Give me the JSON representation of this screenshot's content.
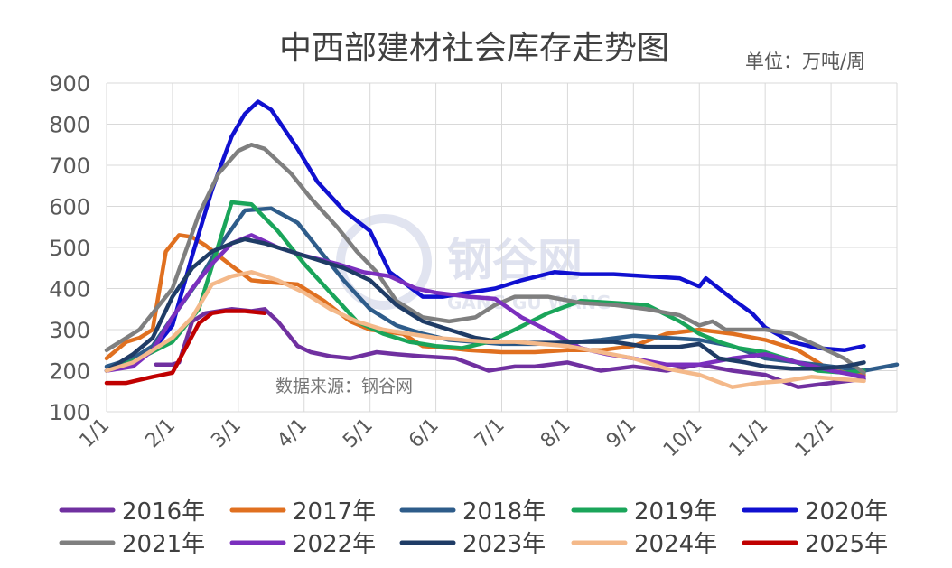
{
  "watermark": {
    "text": "钢谷网",
    "sub": "GANG GU WANG"
  },
  "chart_data": {
    "type": "line",
    "title": "中西部建材社会库存走势图",
    "unit_label": "单位：万吨/周",
    "source_note": "数据来源：钢谷网",
    "xlabel": "",
    "ylabel": "",
    "ylim": [
      100,
      900
    ],
    "yticks": [
      100,
      200,
      300,
      400,
      500,
      600,
      700,
      800,
      900
    ],
    "xlim": [
      0,
      12
    ],
    "xticks": [
      {
        "label": "1/1",
        "x": 0
      },
      {
        "label": "2/1",
        "x": 1
      },
      {
        "label": "3/1",
        "x": 2
      },
      {
        "label": "4/1",
        "x": 3
      },
      {
        "label": "5/1",
        "x": 4
      },
      {
        "label": "6/1",
        "x": 5
      },
      {
        "label": "7/1",
        "x": 6
      },
      {
        "label": "8/1",
        "x": 7
      },
      {
        "label": "9/1",
        "x": 8
      },
      {
        "label": "10/1",
        "x": 9
      },
      {
        "label": "11/1",
        "x": 10
      },
      {
        "label": "12/1",
        "x": 11
      }
    ],
    "grid": true,
    "legend_position": "bottom",
    "series": [
      {
        "name": "2016年",
        "color": "#7030a0",
        "x": [
          0.75,
          1.0,
          1.1,
          1.3,
          1.5,
          1.9,
          2.2,
          2.4,
          2.6,
          2.9,
          3.1,
          3.4,
          3.7,
          4.1,
          4.4,
          4.8,
          5.3,
          5.8,
          6.2,
          6.5,
          7.0,
          7.5,
          8.0,
          8.5,
          9.0,
          9.5,
          10.0,
          10.5,
          11.0,
          11.5
        ],
        "y": [
          215,
          215,
          220,
          320,
          340,
          350,
          345,
          350,
          320,
          260,
          245,
          235,
          230,
          245,
          240,
          235,
          230,
          200,
          210,
          210,
          220,
          200,
          210,
          200,
          215,
          200,
          190,
          160,
          170,
          180
        ]
      },
      {
        "name": "2017年",
        "color": "#e07020",
        "x": [
          0.0,
          0.3,
          0.5,
          0.7,
          0.9,
          1.1,
          1.3,
          1.5,
          1.9,
          2.2,
          2.5,
          2.9,
          3.3,
          3.7,
          4.0,
          4.5,
          4.8,
          5.2,
          5.5,
          6.0,
          6.5,
          7.0,
          7.5,
          8.0,
          8.5,
          9.0,
          9.5,
          10.0,
          10.5,
          11.0,
          11.5
        ],
        "y": [
          230,
          270,
          280,
          300,
          490,
          530,
          525,
          505,
          455,
          420,
          415,
          410,
          370,
          320,
          300,
          290,
          260,
          255,
          250,
          245,
          245,
          250,
          250,
          260,
          290,
          300,
          290,
          275,
          250,
          200,
          190
        ]
      },
      {
        "name": "2018年",
        "color": "#2e5c8a",
        "x": [
          0.0,
          0.4,
          0.7,
          1.0,
          1.4,
          1.7,
          2.1,
          2.5,
          2.9,
          3.3,
          3.6,
          4.0,
          4.4,
          4.8,
          5.2,
          5.6,
          6.0,
          6.5,
          7.0,
          7.5,
          8.0,
          8.5,
          9.0,
          9.5,
          10.0,
          10.5,
          11.0,
          11.5,
          12.0
        ],
        "y": [
          210,
          230,
          260,
          330,
          420,
          500,
          590,
          595,
          560,
          480,
          420,
          350,
          310,
          290,
          275,
          270,
          265,
          265,
          268,
          275,
          285,
          280,
          275,
          260,
          230,
          220,
          210,
          200,
          215
        ]
      },
      {
        "name": "2019年",
        "color": "#1aa55a",
        "x": [
          0.0,
          0.5,
          1.0,
          1.4,
          1.9,
          2.2,
          2.6,
          3.0,
          3.4,
          3.8,
          4.2,
          4.6,
          5.0,
          5.4,
          5.8,
          6.2,
          6.7,
          7.2,
          7.7,
          8.2,
          8.7,
          9.0,
          9.3,
          9.6,
          10.0,
          10.4,
          10.8,
          11.2,
          11.5
        ],
        "y": [
          200,
          230,
          270,
          350,
          610,
          605,
          540,
          460,
          390,
          320,
          290,
          270,
          260,
          255,
          270,
          300,
          340,
          370,
          365,
          360,
          320,
          290,
          270,
          255,
          245,
          225,
          200,
          195,
          200
        ]
      },
      {
        "name": "2020年",
        "color": "#1010d0",
        "x": [
          0.0,
          0.4,
          0.7,
          1.0,
          1.3,
          1.6,
          1.9,
          2.1,
          2.3,
          2.5,
          2.9,
          3.2,
          3.6,
          4.0,
          4.3,
          4.8,
          5.1,
          5.5,
          5.9,
          6.3,
          6.8,
          7.2,
          7.7,
          8.2,
          8.7,
          9.0,
          9.1,
          9.5,
          9.8,
          10.0,
          10.4,
          10.8,
          11.2,
          11.5
        ],
        "y": [
          200,
          220,
          250,
          310,
          480,
          640,
          770,
          825,
          855,
          835,
          740,
          660,
          590,
          540,
          440,
          380,
          380,
          390,
          400,
          420,
          440,
          435,
          435,
          430,
          425,
          405,
          425,
          375,
          340,
          305,
          270,
          255,
          250,
          260
        ]
      },
      {
        "name": "2021年",
        "color": "#7f7f7f",
        "x": [
          0.0,
          0.5,
          1.0,
          1.4,
          1.7,
          2.0,
          2.2,
          2.4,
          2.8,
          3.1,
          3.5,
          3.8,
          4.1,
          4.4,
          4.8,
          5.2,
          5.6,
          5.9,
          6.2,
          6.7,
          7.2,
          7.7,
          8.2,
          8.7,
          9.0,
          9.2,
          9.4,
          9.7,
          10.0,
          10.4,
          10.8,
          11.2,
          11.5
        ],
        "y": [
          250,
          300,
          400,
          580,
          680,
          735,
          750,
          740,
          680,
          620,
          550,
          490,
          440,
          370,
          330,
          320,
          330,
          360,
          380,
          380,
          365,
          360,
          350,
          335,
          310,
          320,
          300,
          300,
          300,
          290,
          260,
          230,
          195
        ]
      },
      {
        "name": "2022年",
        "color": "#7b2fbe",
        "x": [
          0.0,
          0.4,
          0.7,
          1.0,
          1.3,
          1.6,
          1.9,
          2.2,
          2.6,
          3.0,
          3.5,
          3.9,
          4.3,
          4.7,
          5.0,
          5.5,
          5.9,
          6.3,
          6.8,
          7.2,
          7.6,
          8.0,
          8.5,
          9.0,
          9.5,
          10.0,
          10.5,
          11.0,
          11.5
        ],
        "y": [
          200,
          210,
          250,
          330,
          400,
          460,
          510,
          530,
          500,
          480,
          460,
          440,
          430,
          400,
          390,
          380,
          375,
          330,
          290,
          255,
          240,
          230,
          215,
          215,
          230,
          240,
          220,
          200,
          185
        ]
      },
      {
        "name": "2023年",
        "color": "#1f3c66",
        "x": [
          0.0,
          0.4,
          0.7,
          1.0,
          1.3,
          1.6,
          1.9,
          2.1,
          2.4,
          2.8,
          3.2,
          3.6,
          4.0,
          4.4,
          4.8,
          5.2,
          5.6,
          6.0,
          6.4,
          6.8,
          7.2,
          7.7,
          8.2,
          8.7,
          9.0,
          9.3,
          9.7,
          10.0,
          10.4,
          10.8,
          11.2,
          11.5
        ],
        "y": [
          200,
          240,
          280,
          380,
          450,
          490,
          510,
          520,
          510,
          490,
          470,
          450,
          420,
          360,
          320,
          300,
          280,
          270,
          268,
          268,
          270,
          270,
          258,
          258,
          265,
          230,
          220,
          210,
          205,
          205,
          210,
          220
        ]
      },
      {
        "name": "2024年",
        "color": "#f4b98a",
        "x": [
          0.0,
          0.4,
          0.7,
          1.0,
          1.3,
          1.6,
          1.9,
          2.2,
          2.6,
          3.0,
          3.4,
          3.8,
          4.2,
          4.6,
          5.0,
          5.4,
          5.8,
          6.2,
          6.6,
          7.0,
          7.5,
          8.0,
          8.5,
          9.0,
          9.5,
          9.9,
          10.3,
          10.7,
          11.1,
          11.5
        ],
        "y": [
          200,
          220,
          250,
          280,
          330,
          410,
          430,
          440,
          420,
          390,
          350,
          320,
          300,
          290,
          280,
          275,
          270,
          270,
          265,
          260,
          245,
          230,
          205,
          190,
          160,
          170,
          175,
          185,
          180,
          175
        ]
      },
      {
        "name": "2025年",
        "color": "#c00000",
        "x": [
          0.0,
          0.3,
          0.7,
          1.0,
          1.2,
          1.4,
          1.6,
          1.8,
          2.1,
          2.4
        ],
        "y": [
          170,
          170,
          185,
          195,
          255,
          315,
          340,
          345,
          345,
          340
        ]
      }
    ]
  }
}
